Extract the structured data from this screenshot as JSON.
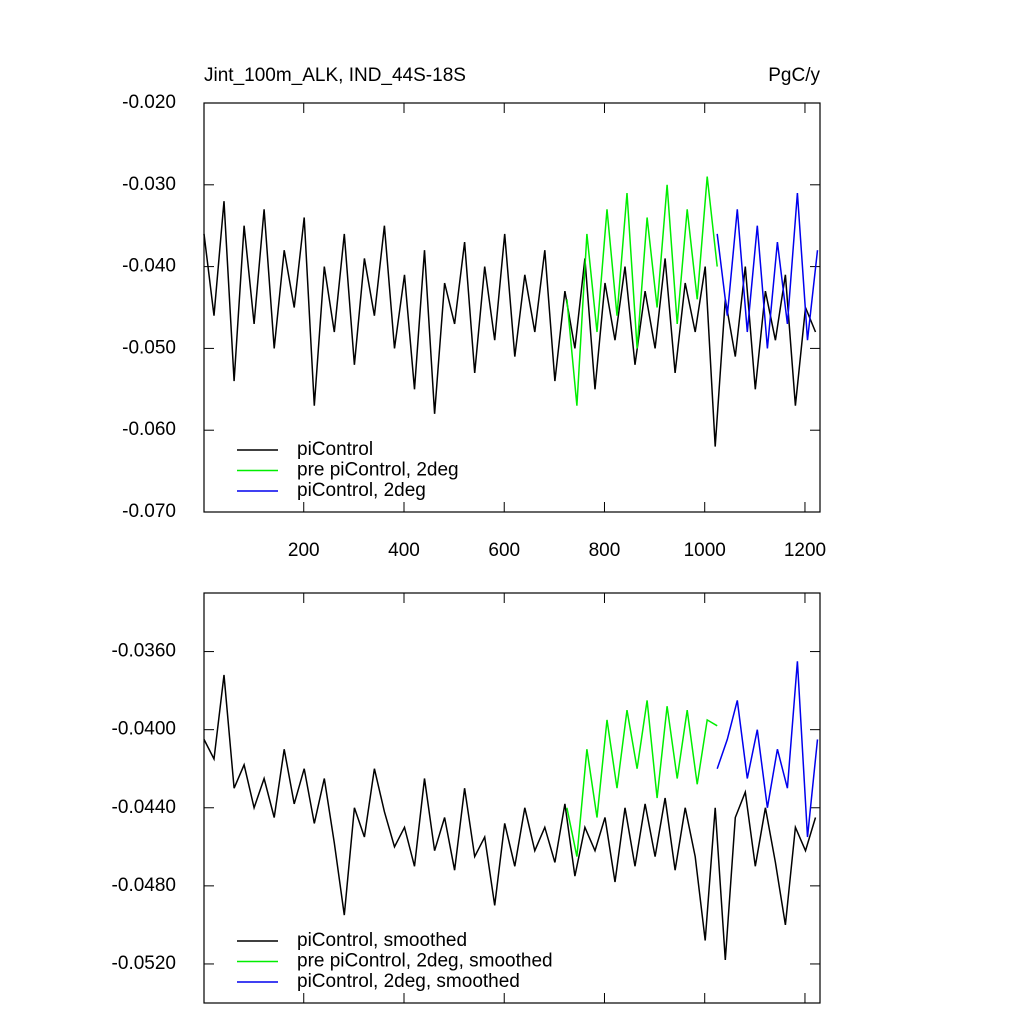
{
  "chart_data": [
    {
      "type": "line",
      "title": "Jint_100m_ALK, IND_44S-18S",
      "right_title": "PgC/y",
      "xlim": [
        1,
        1230
      ],
      "xticks": [
        200,
        400,
        600,
        800,
        1000,
        1200
      ],
      "ylim": [
        -0.07,
        -0.02
      ],
      "yticks": [
        {
          "value": -0.07,
          "label": "-0.070"
        },
        {
          "value": -0.06,
          "label": "-0.060"
        },
        {
          "value": -0.05,
          "label": "-0.050"
        },
        {
          "value": -0.04,
          "label": "-0.040"
        },
        {
          "value": -0.03,
          "label": "-0.030"
        },
        {
          "value": -0.02,
          "label": "-0.020"
        }
      ],
      "legend": "lower-left",
      "series": [
        {
          "name": "piControl",
          "color": "#000000",
          "x": [
            1,
            21,
            41,
            61,
            81,
            101,
            121,
            141,
            161,
            181,
            201,
            221,
            241,
            261,
            281,
            301,
            321,
            341,
            361,
            381,
            401,
            421,
            441,
            461,
            481,
            501,
            521,
            541,
            561,
            581,
            601,
            621,
            641,
            661,
            681,
            701,
            721,
            741,
            761,
            781,
            801,
            821,
            841,
            861,
            881,
            901,
            921,
            941,
            961,
            981,
            1001,
            1021,
            1041,
            1061,
            1081,
            1101,
            1121,
            1141,
            1161,
            1181,
            1201,
            1221
          ],
          "values": [
            -0.036,
            -0.046,
            -0.032,
            -0.054,
            -0.035,
            -0.047,
            -0.033,
            -0.05,
            -0.038,
            -0.045,
            -0.034,
            -0.057,
            -0.04,
            -0.048,
            -0.036,
            -0.052,
            -0.039,
            -0.046,
            -0.035,
            -0.05,
            -0.041,
            -0.055,
            -0.038,
            -0.058,
            -0.042,
            -0.047,
            -0.037,
            -0.053,
            -0.04,
            -0.049,
            -0.036,
            -0.051,
            -0.041,
            -0.048,
            -0.038,
            -0.054,
            -0.043,
            -0.05,
            -0.039,
            -0.055,
            -0.042,
            -0.049,
            -0.04,
            -0.052,
            -0.043,
            -0.05,
            -0.039,
            -0.053,
            -0.042,
            -0.048,
            -0.04,
            -0.062,
            -0.044,
            -0.051,
            -0.04,
            -0.055,
            -0.043,
            -0.049,
            -0.041,
            -0.057,
            -0.045,
            -0.048
          ]
        },
        {
          "name": "pre piControl, 2deg",
          "color": "#00ee00",
          "x": [
            725,
            745,
            765,
            785,
            805,
            825,
            845,
            865,
            885,
            905,
            925,
            945,
            965,
            985,
            1005,
            1025
          ],
          "values": [
            -0.044,
            -0.057,
            -0.036,
            -0.048,
            -0.033,
            -0.046,
            -0.031,
            -0.05,
            -0.034,
            -0.045,
            -0.03,
            -0.047,
            -0.033,
            -0.044,
            -0.029,
            -0.04
          ]
        },
        {
          "name": "piControl, 2deg",
          "color": "#0000ee",
          "x": [
            1025,
            1045,
            1065,
            1085,
            1105,
            1125,
            1145,
            1165,
            1185,
            1205,
            1225
          ],
          "values": [
            -0.036,
            -0.046,
            -0.033,
            -0.048,
            -0.035,
            -0.05,
            -0.037,
            -0.047,
            -0.031,
            -0.049,
            -0.038
          ]
        }
      ]
    },
    {
      "type": "line",
      "xlim": [
        1,
        1230
      ],
      "xticks": [
        200,
        400,
        600,
        800,
        1000,
        1200
      ],
      "ylim": [
        -0.054,
        -0.033
      ],
      "yticks": [
        {
          "value": -0.052,
          "label": "-0.0520"
        },
        {
          "value": -0.048,
          "label": "-0.0480"
        },
        {
          "value": -0.044,
          "label": "-0.0440"
        },
        {
          "value": -0.04,
          "label": "-0.0400"
        },
        {
          "value": -0.036,
          "label": "-0.0360"
        }
      ],
      "legend": "lower-left",
      "series": [
        {
          "name": "piControl, smoothed",
          "color": "#000000",
          "x": [
            1,
            21,
            41,
            61,
            81,
            101,
            121,
            141,
            161,
            181,
            201,
            221,
            241,
            261,
            281,
            301,
            321,
            341,
            361,
            381,
            401,
            421,
            441,
            461,
            481,
            501,
            521,
            541,
            561,
            581,
            601,
            621,
            641,
            661,
            681,
            701,
            721,
            741,
            761,
            781,
            801,
            821,
            841,
            861,
            881,
            901,
            921,
            941,
            961,
            981,
            1001,
            1021,
            1041,
            1061,
            1081,
            1101,
            1121,
            1141,
            1161,
            1181,
            1201,
            1221
          ],
          "values": [
            -0.0405,
            -0.0415,
            -0.0372,
            -0.043,
            -0.0418,
            -0.044,
            -0.0425,
            -0.0445,
            -0.041,
            -0.0438,
            -0.042,
            -0.0448,
            -0.0425,
            -0.0458,
            -0.0495,
            -0.044,
            -0.0455,
            -0.042,
            -0.0442,
            -0.046,
            -0.045,
            -0.047,
            -0.0425,
            -0.0462,
            -0.0445,
            -0.0472,
            -0.043,
            -0.0465,
            -0.0455,
            -0.049,
            -0.0448,
            -0.047,
            -0.044,
            -0.0462,
            -0.045,
            -0.0468,
            -0.0438,
            -0.0475,
            -0.045,
            -0.0462,
            -0.0445,
            -0.0478,
            -0.044,
            -0.047,
            -0.0438,
            -0.0465,
            -0.0435,
            -0.0472,
            -0.044,
            -0.0465,
            -0.0508,
            -0.044,
            -0.0518,
            -0.0445,
            -0.0432,
            -0.047,
            -0.044,
            -0.0468,
            -0.05,
            -0.045,
            -0.0462,
            -0.0445
          ]
        },
        {
          "name": "pre piControl, 2deg, smoothed",
          "color": "#00ee00",
          "x": [
            725,
            745,
            765,
            785,
            805,
            825,
            845,
            865,
            885,
            905,
            925,
            945,
            965,
            985,
            1005,
            1025
          ],
          "values": [
            -0.044,
            -0.0465,
            -0.041,
            -0.0445,
            -0.0395,
            -0.043,
            -0.039,
            -0.042,
            -0.0385,
            -0.0435,
            -0.0388,
            -0.0425,
            -0.039,
            -0.0428,
            -0.0395,
            -0.0398
          ]
        },
        {
          "name": "piControl, 2deg, smoothed",
          "color": "#0000ee",
          "x": [
            1025,
            1045,
            1065,
            1085,
            1105,
            1125,
            1145,
            1165,
            1185,
            1205,
            1225
          ],
          "values": [
            -0.042,
            -0.0405,
            -0.0385,
            -0.0425,
            -0.04,
            -0.044,
            -0.041,
            -0.043,
            -0.0365,
            -0.0455,
            -0.0405
          ]
        }
      ]
    }
  ]
}
